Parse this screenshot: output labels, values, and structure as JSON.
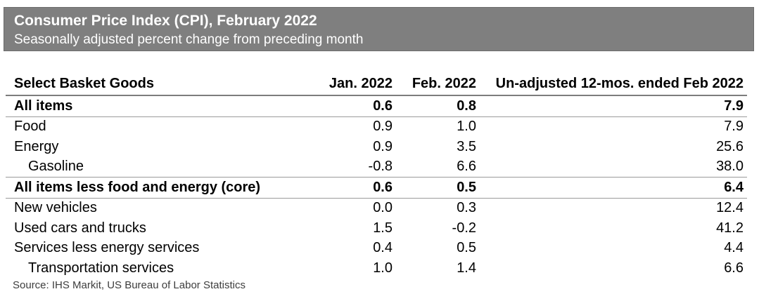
{
  "header": {
    "title": "Consumer Price Index (CPI), February 2022",
    "subtitle": "Seasonally adjusted percent change from preceding month",
    "banner_color": "#7f7f7f",
    "banner_text_color": "#ffffff"
  },
  "table": {
    "columns": {
      "goods": "Select Basket Goods",
      "jan": "Jan. 2022",
      "feb": "Feb. 2022",
      "yoy": "Un-adjusted 12-mos. ended Feb 2022"
    },
    "rows": [
      {
        "label": "All items",
        "jan": "0.6",
        "feb": "0.8",
        "yoy": "7.9"
      },
      {
        "label": "Food",
        "jan": "0.9",
        "feb": "1.0",
        "yoy": "7.9"
      },
      {
        "label": "Energy",
        "jan": "0.9",
        "feb": "3.5",
        "yoy": "25.6"
      },
      {
        "label": "Gasoline",
        "jan": "-0.8",
        "feb": "6.6",
        "yoy": "38.0"
      },
      {
        "label": "All items less food and energy (core)",
        "jan": "0.6",
        "feb": "0.5",
        "yoy": "6.4"
      },
      {
        "label": "New vehicles",
        "jan": "0.0",
        "feb": "0.3",
        "yoy": "12.4"
      },
      {
        "label": "Used cars and trucks",
        "jan": "1.5",
        "feb": "-0.2",
        "yoy": "41.2"
      },
      {
        "label": "Services less energy services",
        "jan": "0.4",
        "feb": "0.5",
        "yoy": "4.4"
      },
      {
        "label": "Transportation services",
        "jan": "1.0",
        "feb": "1.4",
        "yoy": "6.6"
      }
    ]
  },
  "source": "Source: IHS Markit, US Bureau of Labor Statistics",
  "chart_data": {
    "type": "table",
    "title": "Consumer Price Index (CPI), February 2022",
    "subtitle": "Seasonally adjusted percent change from preceding month",
    "categories": [
      "All items",
      "Food",
      "Energy",
      "Gasoline",
      "All items less food and energy (core)",
      "New vehicles",
      "Used cars and trucks",
      "Services less energy services",
      "Transportation services"
    ],
    "series": [
      {
        "name": "Jan. 2022",
        "values": [
          0.6,
          0.9,
          0.9,
          -0.8,
          0.6,
          0.0,
          1.5,
          0.4,
          1.0
        ]
      },
      {
        "name": "Feb. 2022",
        "values": [
          0.8,
          1.0,
          3.5,
          6.6,
          0.5,
          0.3,
          -0.2,
          0.5,
          1.4
        ]
      },
      {
        "name": "Un-adjusted 12-mos. ended Feb 2022",
        "values": [
          7.9,
          7.9,
          25.6,
          38.0,
          6.4,
          12.4,
          41.2,
          4.4,
          6.6
        ]
      }
    ]
  }
}
